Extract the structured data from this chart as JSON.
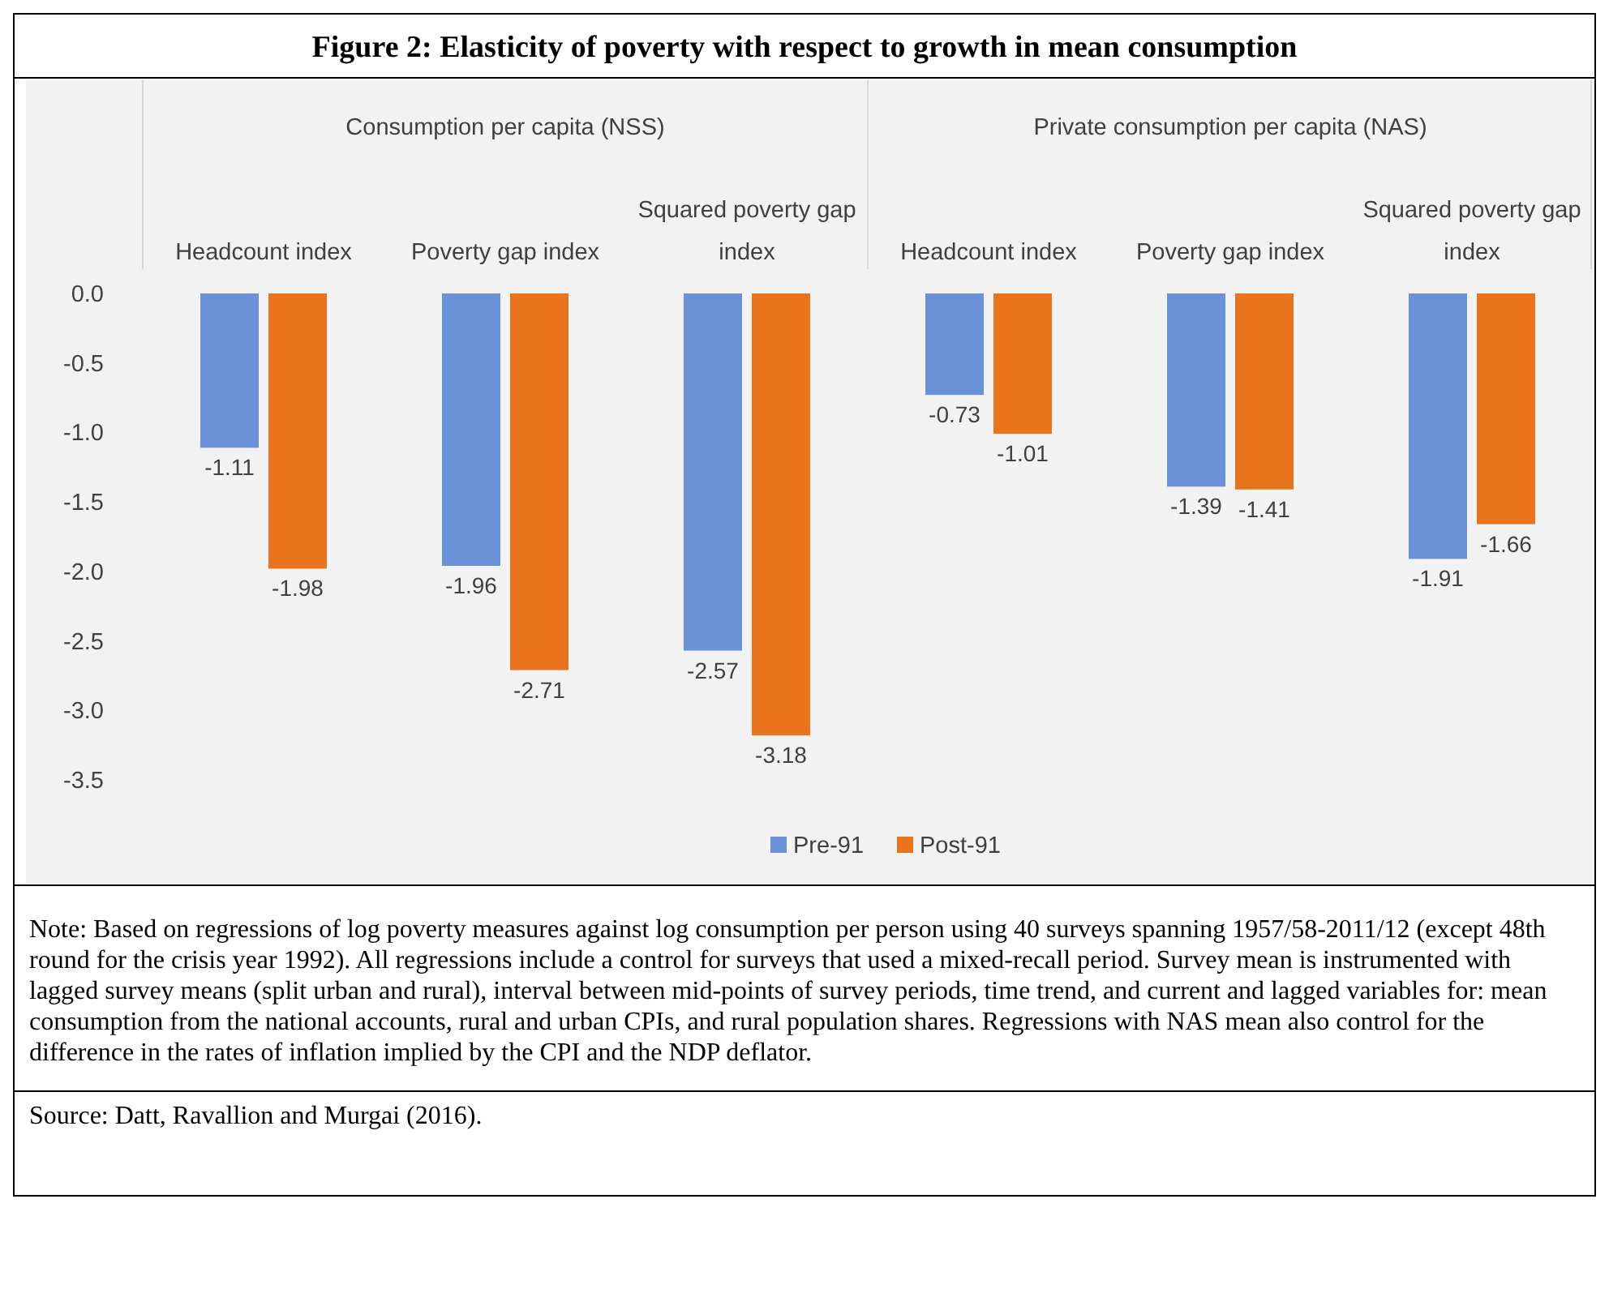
{
  "chart_data": {
    "type": "bar",
    "title": "Figure 2: Elasticity of poverty with respect to growth in mean consumption",
    "categories": [
      "Headcount index",
      "Poverty gap index",
      "Squared poverty gap index",
      "Headcount index",
      "Poverty gap index",
      "Squared poverty gap index"
    ],
    "series": [
      {
        "name": "Pre-91",
        "color": "#6b91d8",
        "values": [
          -1.11,
          -1.96,
          -2.57,
          -0.73,
          -1.39,
          -1.91
        ]
      },
      {
        "name": "Post-91",
        "color": "#e8751d",
        "values": [
          -1.98,
          -2.71,
          -3.18,
          -1.01,
          -1.41,
          -1.66
        ]
      }
    ],
    "ylim": [
      -3.5,
      0
    ],
    "yticks": [
      {
        "value": 0,
        "label": "0.0"
      },
      {
        "value": -0.5,
        "label": "-0.5"
      },
      {
        "value": -1,
        "label": "-1.0"
      },
      {
        "value": -1.5,
        "label": "-1.5"
      },
      {
        "value": -2,
        "label": "-2.0"
      },
      {
        "value": -2.5,
        "label": "-2.5"
      },
      {
        "value": -3,
        "label": "-3.0"
      },
      {
        "value": -3.5,
        "label": "-3.5"
      }
    ],
    "data_labels": true,
    "grid": false,
    "legend": "bottom",
    "annotations": [
      "Consumption per capita (NSS)",
      "Private consumption per capita (NAS)",
      "Note:  Based on regressions of log poverty measures against log consumption per person using 40 surveys spanning 1957/58-2011/12 (except 48th round for the crisis year 1992).  All regressions include a control for surveys that used a mixed-recall period.  Survey mean is instrumented with lagged survey means (split urban and rural), interval between mid-points of survey periods, time trend, and current and lagged variables for: mean consumption from the national accounts, rural and urban CPIs, and rural population shares. Regressions with NAS mean also control for the difference in the rates of inflation implied by the CPI and the NDP deflator.",
      "Source: Datt, Ravallion and Murgai (2016)."
    ]
  }
}
